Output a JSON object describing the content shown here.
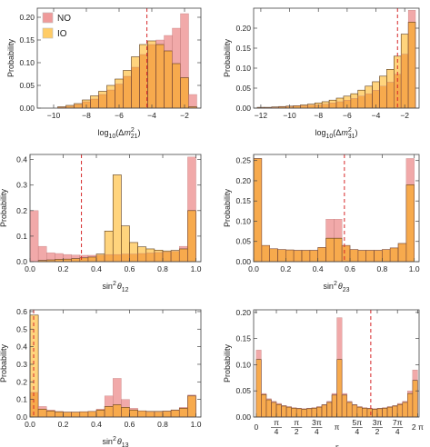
{
  "figure": {
    "legend": [
      {
        "label": "NO",
        "color": "#ef9a9a"
      },
      {
        "label": "IO",
        "color": "#ffcc66"
      }
    ],
    "colors": {
      "NO": "#ef9a9a",
      "IO": "#ffcc66",
      "overlap": "#f6a13a",
      "reference_line": "#d62728"
    }
  },
  "chart_data": [
    {
      "type": "bar",
      "xlabel": "log10(Δm²21)",
      "ylabel": "Probability",
      "xlim": [
        -11,
        -1
      ],
      "ylim": [
        0,
        0.22
      ],
      "xticks": [
        -10,
        -8,
        -6,
        -4,
        -2
      ],
      "yticks": [
        0.0,
        0.05,
        0.1,
        0.15,
        0.2
      ],
      "ytick_labels": [
        "0.00",
        "0.05",
        "0.10",
        "0.15",
        "0.20"
      ],
      "bins": [
        -9.5,
        -9,
        -8.5,
        -8,
        -7.5,
        -7,
        -6.5,
        -6,
        -5.5,
        -5,
        -4.5,
        -4,
        -3.5,
        -3,
        -2.5,
        -2,
        -1.5
      ],
      "series": [
        {
          "name": "NO",
          "values": [
            0.002,
            0.004,
            0.008,
            0.014,
            0.02,
            0.03,
            0.04,
            0.053,
            0.07,
            0.09,
            0.118,
            0.14,
            0.15,
            0.16,
            0.176,
            0.208,
            0.03
          ]
        },
        {
          "name": "IO",
          "values": [
            0.003,
            0.006,
            0.01,
            0.018,
            0.027,
            0.037,
            0.05,
            0.064,
            0.083,
            0.113,
            0.14,
            0.148,
            0.14,
            0.126,
            0.098,
            0.067,
            0.003
          ]
        }
      ],
      "reference_line": -4.3,
      "legend_position": "top-left"
    },
    {
      "type": "bar",
      "xlabel": "log10(Δm²31)",
      "ylabel": "Probability",
      "xlim": [
        -12.5,
        -1
      ],
      "ylim": [
        0,
        0.25
      ],
      "xticks": [
        -12,
        -10,
        -8,
        -6,
        -4,
        -2
      ],
      "yticks": [
        0.0,
        0.05,
        0.1,
        0.15,
        0.2
      ],
      "ytick_labels": [
        "0.00",
        "0.05",
        "0.10",
        "0.15",
        "0.20"
      ],
      "bins": [
        -12,
        -11.5,
        -11,
        -10.5,
        -10,
        -9.5,
        -9,
        -8.5,
        -8,
        -7.5,
        -7,
        -6.5,
        -6,
        -5.5,
        -5,
        -4.5,
        -4,
        -3.5,
        -3,
        -2.5,
        -2,
        -1.5
      ],
      "series": [
        {
          "name": "NO",
          "values": [
            0.001,
            0.001,
            0.002,
            0.003,
            0.004,
            0.005,
            0.006,
            0.007,
            0.008,
            0.01,
            0.013,
            0.016,
            0.02,
            0.024,
            0.03,
            0.036,
            0.045,
            0.055,
            0.065,
            0.085,
            0.135,
            0.245
          ]
        },
        {
          "name": "IO",
          "values": [
            0.002,
            0.002,
            0.003,
            0.004,
            0.005,
            0.006,
            0.008,
            0.01,
            0.013,
            0.016,
            0.02,
            0.025,
            0.03,
            0.036,
            0.045,
            0.055,
            0.066,
            0.08,
            0.097,
            0.13,
            0.185,
            0.215
          ]
        }
      ],
      "reference_line": -2.5
    },
    {
      "type": "bar",
      "xlabel": "sin²θ12",
      "ylabel": "Probability",
      "xlim": [
        0,
        1.03
      ],
      "ylim": [
        0,
        0.42
      ],
      "xticks": [
        0.0,
        0.2,
        0.4,
        0.6,
        0.8,
        1.0
      ],
      "xtick_labels": [
        "0.0",
        "0.2",
        "0.4",
        "0.6",
        "0.8",
        "1.0"
      ],
      "yticks": [
        0.0,
        0.1,
        0.2,
        0.3,
        0.4
      ],
      "ytick_labels": [
        "0.0",
        "0.1",
        "0.2",
        "0.3",
        "0.4"
      ],
      "bins": [
        0.025,
        0.075,
        0.125,
        0.175,
        0.225,
        0.275,
        0.325,
        0.375,
        0.425,
        0.475,
        0.525,
        0.575,
        0.625,
        0.675,
        0.725,
        0.775,
        0.825,
        0.875,
        0.925,
        0.975
      ],
      "series": [
        {
          "name": "NO",
          "values": [
            0.2,
            0.06,
            0.035,
            0.032,
            0.028,
            0.026,
            0.025,
            0.025,
            0.025,
            0.028,
            0.028,
            0.03,
            0.03,
            0.032,
            0.034,
            0.036,
            0.038,
            0.04,
            0.06,
            0.41
          ]
        },
        {
          "name": "IO",
          "values": [
            0.0,
            0.005,
            0.007,
            0.009,
            0.01,
            0.012,
            0.015,
            0.018,
            0.03,
            0.12,
            0.34,
            0.14,
            0.075,
            0.058,
            0.05,
            0.045,
            0.042,
            0.044,
            0.05,
            0.2
          ]
        }
      ],
      "reference_line": 0.31
    },
    {
      "type": "bar",
      "xlabel": "sin²θ23",
      "ylabel": "Probability",
      "xlim": [
        0,
        1.03
      ],
      "ylim": [
        0,
        0.265
      ],
      "xticks": [
        0.0,
        0.2,
        0.4,
        0.6,
        0.8,
        1.0
      ],
      "xtick_labels": [
        "0.0",
        "0.2",
        "0.4",
        "0.6",
        "0.8",
        "1.0"
      ],
      "yticks": [
        0.0,
        0.05,
        0.1,
        0.15,
        0.2,
        0.25
      ],
      "ytick_labels": [
        "0.00",
        "0.05",
        "0.10",
        "0.15",
        "0.20",
        "0.25"
      ],
      "bins": [
        0.025,
        0.075,
        0.125,
        0.175,
        0.225,
        0.275,
        0.325,
        0.375,
        0.425,
        0.475,
        0.525,
        0.575,
        0.625,
        0.675,
        0.725,
        0.775,
        0.825,
        0.875,
        0.925,
        0.975
      ],
      "series": [
        {
          "name": "NO",
          "values": [
            0.255,
            0.04,
            0.032,
            0.03,
            0.029,
            0.028,
            0.028,
            0.028,
            0.035,
            0.105,
            0.105,
            0.04,
            0.03,
            0.028,
            0.028,
            0.028,
            0.03,
            0.034,
            0.045,
            0.255
          ]
        },
        {
          "name": "IO",
          "values": [
            0.255,
            0.04,
            0.032,
            0.03,
            0.029,
            0.028,
            0.028,
            0.028,
            0.035,
            0.058,
            0.058,
            0.04,
            0.03,
            0.028,
            0.028,
            0.028,
            0.03,
            0.034,
            0.045,
            0.19
          ]
        }
      ],
      "reference_line": 0.565
    },
    {
      "type": "bar",
      "xlabel": "sin²θ13",
      "ylabel": "Probability",
      "xlim": [
        0,
        1.03
      ],
      "ylim": [
        0,
        0.61
      ],
      "xticks": [
        0.0,
        0.2,
        0.4,
        0.6,
        0.8,
        1.0
      ],
      "xtick_labels": [
        "0.0",
        "0.2",
        "0.4",
        "0.6",
        "0.8",
        "1.0"
      ],
      "yticks": [
        0.0,
        0.1,
        0.2,
        0.3,
        0.4,
        0.5,
        0.6
      ],
      "ytick_labels": [
        "0.0",
        "0.1",
        "0.2",
        "0.3",
        "0.4",
        "0.5",
        "0.6"
      ],
      "bins": [
        0.025,
        0.075,
        0.125,
        0.175,
        0.225,
        0.275,
        0.325,
        0.375,
        0.425,
        0.475,
        0.525,
        0.575,
        0.625,
        0.675,
        0.725,
        0.775,
        0.825,
        0.875,
        0.925,
        0.975
      ],
      "series": [
        {
          "name": "NO",
          "values": [
            0.14,
            0.06,
            0.04,
            0.032,
            0.028,
            0.028,
            0.03,
            0.032,
            0.045,
            0.12,
            0.22,
            0.1,
            0.05,
            0.035,
            0.03,
            0.03,
            0.032,
            0.038,
            0.055,
            0.125
          ]
        },
        {
          "name": "IO",
          "values": [
            0.58,
            0.045,
            0.035,
            0.03,
            0.028,
            0.028,
            0.03,
            0.032,
            0.04,
            0.06,
            0.07,
            0.055,
            0.04,
            0.035,
            0.032,
            0.032,
            0.034,
            0.04,
            0.05,
            0.12
          ]
        }
      ],
      "reference_line": 0.022
    },
    {
      "type": "bar",
      "xlabel": "δ",
      "ylabel": "Probability",
      "xlim": [
        -0.1,
        6.34
      ],
      "ylim": [
        0,
        0.205
      ],
      "xticks": [
        0,
        0.785,
        1.571,
        2.356,
        3.142,
        3.927,
        4.712,
        5.498,
        6.283
      ],
      "xtick_labels": [
        "0",
        "π/4",
        "π/2",
        "3π/4",
        "π",
        "5π/4",
        "3π/2",
        "7π/4",
        "2π"
      ],
      "yticks": [
        0.0,
        0.05,
        0.1,
        0.15,
        0.2
      ],
      "ytick_labels": [
        "0.00",
        "0.05",
        "0.10",
        "0.15",
        "0.20"
      ],
      "bins": [
        0.098,
        0.295,
        0.491,
        0.687,
        0.884,
        1.08,
        1.276,
        1.473,
        1.669,
        1.865,
        2.062,
        2.258,
        2.454,
        2.651,
        2.847,
        3.043,
        3.24,
        3.436,
        3.632,
        3.829,
        4.025,
        4.221,
        4.418,
        4.614,
        4.81,
        5.007,
        5.203,
        5.4,
        5.596,
        5.792,
        5.989,
        6.185
      ],
      "series": [
        {
          "name": "NO",
          "values": [
            0.128,
            0.045,
            0.035,
            0.03,
            0.026,
            0.022,
            0.02,
            0.018,
            0.017,
            0.016,
            0.017,
            0.018,
            0.02,
            0.024,
            0.03,
            0.045,
            0.19,
            0.045,
            0.03,
            0.024,
            0.02,
            0.018,
            0.017,
            0.016,
            0.017,
            0.018,
            0.02,
            0.022,
            0.026,
            0.03,
            0.05,
            0.09
          ]
        },
        {
          "name": "IO",
          "values": [
            0.11,
            0.043,
            0.033,
            0.028,
            0.024,
            0.021,
            0.019,
            0.017,
            0.016,
            0.015,
            0.016,
            0.017,
            0.019,
            0.023,
            0.028,
            0.042,
            0.11,
            0.042,
            0.028,
            0.023,
            0.019,
            0.017,
            0.016,
            0.015,
            0.016,
            0.017,
            0.019,
            0.021,
            0.024,
            0.028,
            0.045,
            0.07
          ]
        }
      ],
      "reference_line": 4.46
    }
  ]
}
